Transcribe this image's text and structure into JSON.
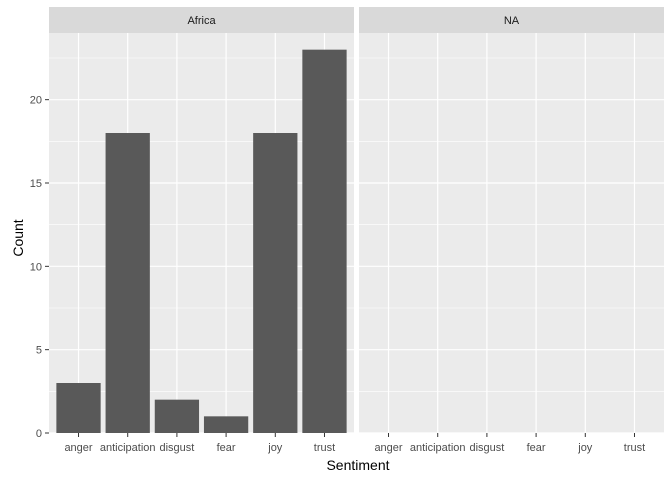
{
  "chart_data": {
    "type": "bar",
    "facet_by": "region",
    "panels": [
      {
        "label": "Africa",
        "categories": [
          "anger",
          "anticipation",
          "disgust",
          "fear",
          "joy",
          "trust"
        ],
        "values": [
          3,
          18,
          2,
          1,
          18,
          23
        ]
      },
      {
        "label": "NA",
        "categories": [
          "anger",
          "anticipation",
          "disgust",
          "fear",
          "joy",
          "trust"
        ],
        "values": [
          0,
          0,
          0,
          0,
          0,
          0
        ]
      }
    ],
    "xlabel": "Sentiment",
    "ylabel": "Count",
    "ylim": [
      0,
      24
    ],
    "yticks": [
      0,
      5,
      10,
      15,
      20
    ],
    "grid": true,
    "colors": {
      "bar": "#595959",
      "panel_background": "#ebebeb",
      "strip_background": "#d9d9d9",
      "gridline": "#ffffff",
      "axis_text": "#4d4d4d",
      "strip_text": "#1a1a1a",
      "title_text": "#000000"
    }
  }
}
